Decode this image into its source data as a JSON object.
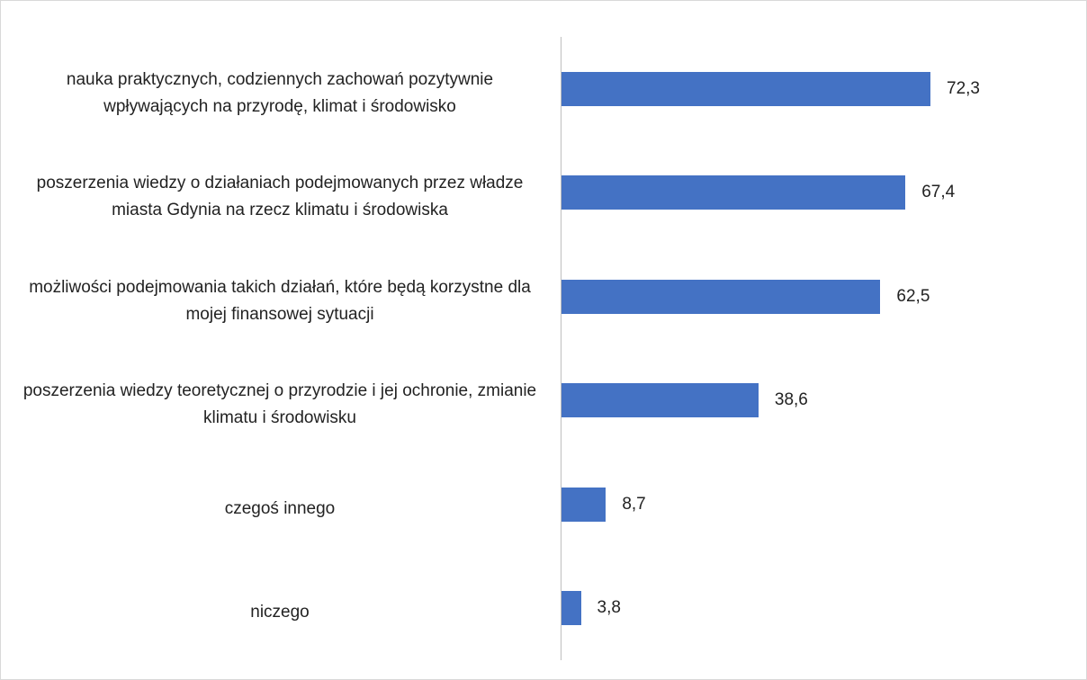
{
  "chart_data": {
    "type": "bar",
    "categories": [
      "nauka praktycznych, codziennych zachowań pozytywnie wpływających na przyrodę, klimat i środowisko",
      "poszerzenia wiedzy o działaniach podejmowanych przez władze miasta Gdynia na rzecz klimatu i środowiska",
      "możliwości podejmowania takich działań, które będą korzystne dla mojej finansowej sytuacji",
      "poszerzenia wiedzy teoretycznej o przyrodzie i jej ochronie, zmianie klimatu i środowisku",
      "czegoś innego",
      "niczego"
    ],
    "values": [
      72.3,
      67.4,
      62.5,
      38.6,
      8.7,
      3.8
    ],
    "value_labels": [
      "72,3",
      "67,4",
      "62,5",
      "38,6",
      "8,7",
      "3,8"
    ],
    "color": "#4472c4"
  }
}
